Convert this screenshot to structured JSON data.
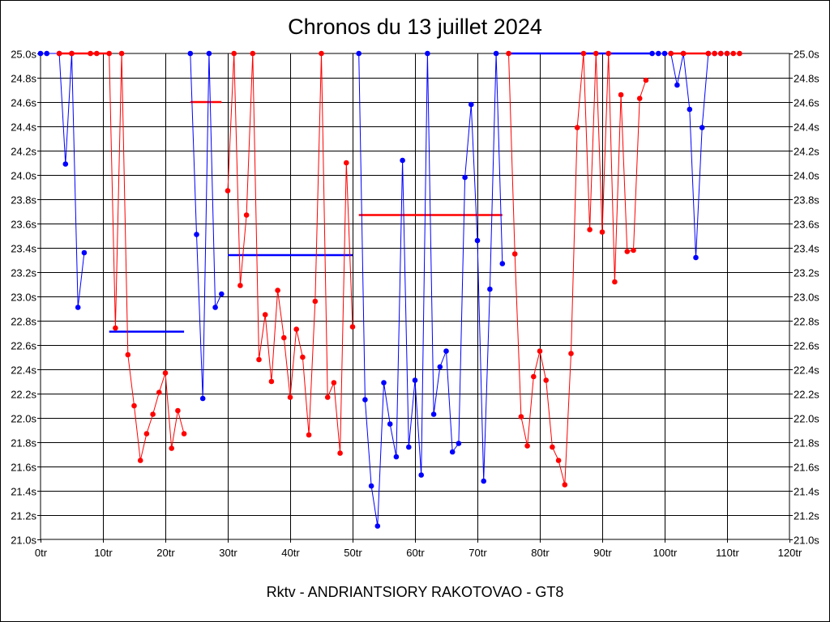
{
  "chart_data": {
    "type": "line",
    "title": "Chronos du 13 juillet 2024",
    "xlabel": "",
    "ylabel": "",
    "footer": "Rktv - ANDRIANTSIORY RAKOTOVAO - GT8",
    "xlim": [
      0,
      120
    ],
    "ylim": [
      21.0,
      25.0
    ],
    "x_ticks": [
      "0tr",
      "10tr",
      "20tr",
      "30tr",
      "40tr",
      "50tr",
      "60tr",
      "70tr",
      "80tr",
      "90tr",
      "100tr",
      "110tr",
      "120tr"
    ],
    "y_ticks": [
      "21.0s",
      "21.2s",
      "21.4s",
      "21.6s",
      "21.8s",
      "22.0s",
      "22.2s",
      "22.4s",
      "22.6s",
      "22.8s",
      "23.0s",
      "23.2s",
      "23.4s",
      "23.6s",
      "23.8s",
      "24.0s",
      "24.2s",
      "24.4s",
      "24.6s",
      "24.8s",
      "25.0s"
    ],
    "grid": true,
    "legend": "none",
    "series": [
      {
        "color": "#0000ff",
        "x": [
          0,
          1,
          3,
          4,
          5,
          6,
          7
        ],
        "y": [
          25.0,
          25.0,
          25.0,
          24.09,
          25.0,
          22.91,
          23.36
        ]
      },
      {
        "color": "#ff0000",
        "x": [
          3,
          5,
          8,
          9,
          11,
          12,
          13,
          14,
          15,
          16,
          17,
          18,
          19,
          20,
          21,
          22,
          23
        ],
        "y": [
          25.0,
          25.0,
          25.0,
          25.0,
          25.0,
          22.74,
          25.0,
          22.52,
          22.1,
          21.65,
          21.87,
          22.03,
          22.21,
          22.37,
          21.75,
          22.06,
          21.87
        ]
      },
      {
        "color": "#0000ff",
        "x": [
          24,
          25,
          26,
          27,
          28,
          29
        ],
        "y": [
          25.0,
          23.51,
          22.16,
          25.0,
          22.91,
          23.02
        ]
      },
      {
        "color": "#ff0000",
        "x": [
          30,
          31,
          32,
          33,
          34,
          35,
          36,
          37,
          38,
          39,
          40,
          41,
          42,
          43,
          44,
          45,
          46,
          47,
          48,
          49,
          50
        ],
        "y": [
          23.87,
          25.0,
          23.09,
          23.67,
          25.0,
          22.48,
          22.85,
          22.3,
          23.05,
          22.66,
          22.17,
          22.73,
          22.5,
          21.86,
          22.96,
          25.0,
          22.17,
          22.29,
          21.71,
          24.1,
          22.75
        ]
      },
      {
        "color": "#0000ff",
        "x": [
          51,
          52,
          53,
          54,
          55,
          56,
          57,
          58,
          59,
          60,
          61,
          62,
          63,
          64,
          65,
          66,
          67,
          68,
          69,
          70,
          71,
          72,
          73,
          74
        ],
        "y": [
          25.0,
          22.15,
          21.44,
          21.11,
          22.29,
          21.95,
          21.68,
          24.12,
          21.76,
          22.31,
          21.53,
          25.0,
          22.03,
          22.42,
          22.55,
          21.72,
          21.79,
          23.98,
          24.58,
          23.46,
          21.48,
          23.06,
          25.0,
          23.27
        ]
      },
      {
        "color": "#ff0000",
        "x": [
          75,
          76,
          77,
          78,
          79,
          80,
          81,
          82,
          83,
          84,
          85,
          86,
          87,
          88,
          89,
          90,
          91,
          92,
          93,
          94,
          95,
          96,
          97
        ],
        "y": [
          25.0,
          23.35,
          22.01,
          21.77,
          22.34,
          22.55,
          22.31,
          21.76,
          21.65,
          21.45,
          22.53,
          24.39,
          25.0,
          23.55,
          25.0,
          23.53,
          25.0,
          23.12,
          24.66,
          23.37,
          23.38,
          24.63,
          24.78
        ]
      },
      {
        "color": "#0000ff",
        "x": [
          98,
          99,
          100,
          101,
          102,
          103,
          104,
          105,
          106,
          107,
          108,
          109,
          110
        ],
        "y": [
          25.0,
          25.0,
          25.0,
          25.0,
          24.74,
          25.0,
          24.54,
          23.32,
          24.39,
          25.0,
          25.0,
          25.0,
          25.0
        ]
      },
      {
        "color": "#ff0000",
        "x": [
          101,
          103,
          107,
          108,
          109,
          110,
          111,
          112
        ],
        "y": [
          25.0,
          25.0,
          25.0,
          25.0,
          25.0,
          25.0,
          25.0,
          25.0
        ]
      }
    ],
    "average_segments": [
      {
        "color": "#ff0000",
        "x": [
          3,
          11
        ],
        "y": 25.0
      },
      {
        "color": "#0000ff",
        "x": [
          11,
          23
        ],
        "y": 22.71
      },
      {
        "color": "#ff0000",
        "x": [
          24,
          29
        ],
        "y": 24.6
      },
      {
        "color": "#0000ff",
        "x": [
          30,
          50
        ],
        "y": 23.34
      },
      {
        "color": "#ff0000",
        "x": [
          51,
          74
        ],
        "y": 23.67
      },
      {
        "color": "#0000ff",
        "x": [
          75,
          98
        ],
        "y": 25.0
      },
      {
        "color": "#ff0000",
        "x": [
          101,
          107
        ],
        "y": 25.0
      }
    ]
  }
}
